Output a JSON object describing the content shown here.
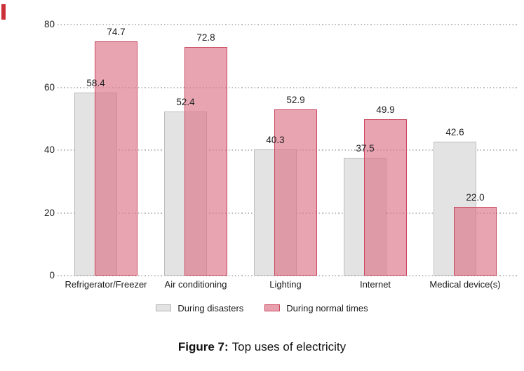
{
  "chart_data": {
    "type": "bar",
    "title": "",
    "categories": [
      "Refrigerator/Freezer",
      "Air conditioning",
      "Lighting",
      "Internet",
      "Medical device(s)"
    ],
    "series": [
      {
        "name": "During disasters",
        "values": [
          58.4,
          52.4,
          40.3,
          37.5,
          42.6
        ],
        "fill": "#e3e3e3",
        "border": "#bdbdbd",
        "legend_fill": "#e3e3e3",
        "legend_border": "#b5b5b5"
      },
      {
        "name": "During normal times",
        "values": [
          74.7,
          72.8,
          52.9,
          49.9,
          22.0
        ],
        "fill": "rgba(221,115,135,0.65)",
        "border": "#c9475f",
        "legend_fill": "#e9a0ae",
        "legend_border": "#c9475f"
      }
    ],
    "xlabel": "",
    "ylabel": "",
    "ylim": [
      0,
      80
    ],
    "yticks": [
      0,
      20,
      40,
      60,
      80
    ],
    "grid": "horizontal-dotted",
    "gridline_color": "#bcbcbc",
    "legend_position": "bottom",
    "value_labels": true,
    "value_label_color": "#222222",
    "bar_style": "overlapping"
  },
  "caption": {
    "prefix": "Figure 7:",
    "rest": "Top uses of electricity"
  },
  "artifacts": {
    "red_edge_mark_color": "#cc3139"
  }
}
